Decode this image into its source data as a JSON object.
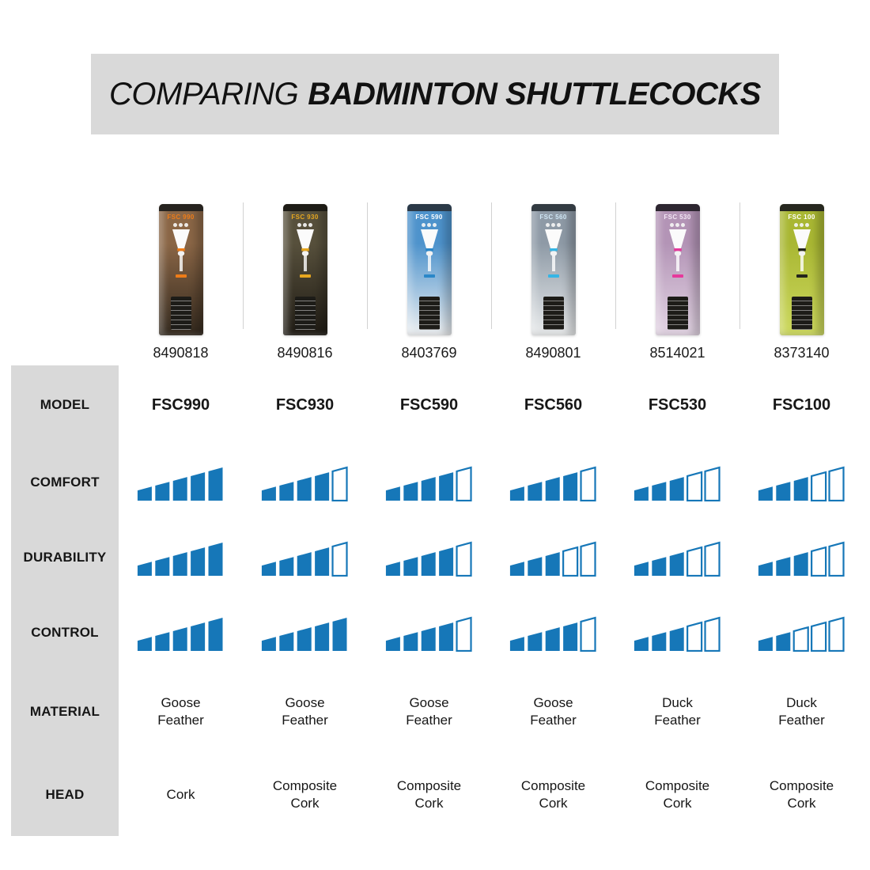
{
  "colors": {
    "bar_blue": "#1677b8",
    "banner_bg": "#d9d9d9",
    "sidebar_bg": "#d9d9d9",
    "text": "#111111"
  },
  "header": {
    "title_regular": "COMPARING",
    "title_bold": "BADMINTON SHUTTLECOCKS"
  },
  "row_labels": {
    "model": "MODEL",
    "comfort": "COMFORT",
    "durability": "DURABILITY",
    "control": "CONTROL",
    "material": "MATERIAL",
    "head": "HEAD"
  },
  "rating_scale_max": 5,
  "products": [
    {
      "id": "8490818",
      "model": "FSC990",
      "pack_label": "FSC 990",
      "comfort": 5,
      "durability": 5,
      "control": 5,
      "material": "Goose Feather",
      "head": "Cork",
      "tube": {
        "cap": "#26231f",
        "top": "#8a6646",
        "bottom": "#33291e",
        "accent": "#ee7c18",
        "label": "#ee7c18"
      }
    },
    {
      "id": "8490816",
      "model": "FSC930",
      "pack_label": "FSC 930",
      "comfort": 4,
      "durability": 4,
      "control": 5,
      "material": "Goose Feather",
      "head": "Composite Cork",
      "tube": {
        "cap": "#1e1c16",
        "top": "#57503c",
        "bottom": "#1f1b14",
        "accent": "#e7a71f",
        "label": "#e7a71f"
      }
    },
    {
      "id": "8403769",
      "model": "FSC590",
      "pack_label": "FSC 590",
      "comfort": 4,
      "durability": 4,
      "control": 4,
      "material": "Goose Feather",
      "head": "Composite Cork",
      "tube": {
        "cap": "#2b3947",
        "top": "#4e93cc",
        "bottom": "#eef0f2",
        "accent": "#2b87c8",
        "label": "#ffffff"
      }
    },
    {
      "id": "8490801",
      "model": "FSC560",
      "pack_label": "FSC 560",
      "comfort": 4,
      "durability": 3,
      "control": 4,
      "material": "Goose Feather",
      "head": "Composite Cork",
      "tube": {
        "cap": "#333b42",
        "top": "#8e9aa6",
        "bottom": "#e9ebec",
        "accent": "#35b5e5",
        "label": "#cfe6f5"
      }
    },
    {
      "id": "8514021",
      "model": "FSC530",
      "pack_label": "FSC 530",
      "comfort": 3,
      "durability": 3,
      "control": 3,
      "material": "Duck Feather",
      "head": "Composite Cork",
      "tube": {
        "cap": "#2d2630",
        "top": "#b394b6",
        "bottom": "#e3d5e4",
        "accent": "#e6399b",
        "label": "#f3e6f5"
      }
    },
    {
      "id": "8373140",
      "model": "FSC100",
      "pack_label": "FSC 100",
      "comfort": 3,
      "durability": 3,
      "control": 2,
      "material": "Duck Feather",
      "head": "Composite Cork",
      "tube": {
        "cap": "#26271f",
        "top": "#a9b733",
        "bottom": "#cdd95e",
        "accent": "#23241c",
        "label": "#ffffff"
      }
    }
  ],
  "chart_data": {
    "type": "table",
    "title": "COMPARING BADMINTON SHUTTLECOCKS",
    "categories": [
      "FSC990",
      "FSC930",
      "FSC590",
      "FSC560",
      "FSC530",
      "FSC100"
    ],
    "product_ids": [
      "8490818",
      "8490816",
      "8403769",
      "8490801",
      "8514021",
      "8373140"
    ],
    "series": [
      {
        "name": "COMFORT",
        "values": [
          5,
          4,
          4,
          4,
          3,
          3
        ]
      },
      {
        "name": "DURABILITY",
        "values": [
          5,
          4,
          4,
          3,
          3,
          3
        ]
      },
      {
        "name": "CONTROL",
        "values": [
          5,
          5,
          4,
          4,
          3,
          2
        ]
      }
    ],
    "rows_text": [
      {
        "name": "MATERIAL",
        "values": [
          "Goose Feather",
          "Goose Feather",
          "Goose Feather",
          "Goose Feather",
          "Duck Feather",
          "Duck Feather"
        ]
      },
      {
        "name": "HEAD",
        "values": [
          "Cork",
          "Composite Cork",
          "Composite Cork",
          "Composite Cork",
          "Composite Cork",
          "Composite Cork"
        ]
      }
    ],
    "scale": [
      0,
      5
    ],
    "legend": "filled ascending bars out of 5"
  }
}
